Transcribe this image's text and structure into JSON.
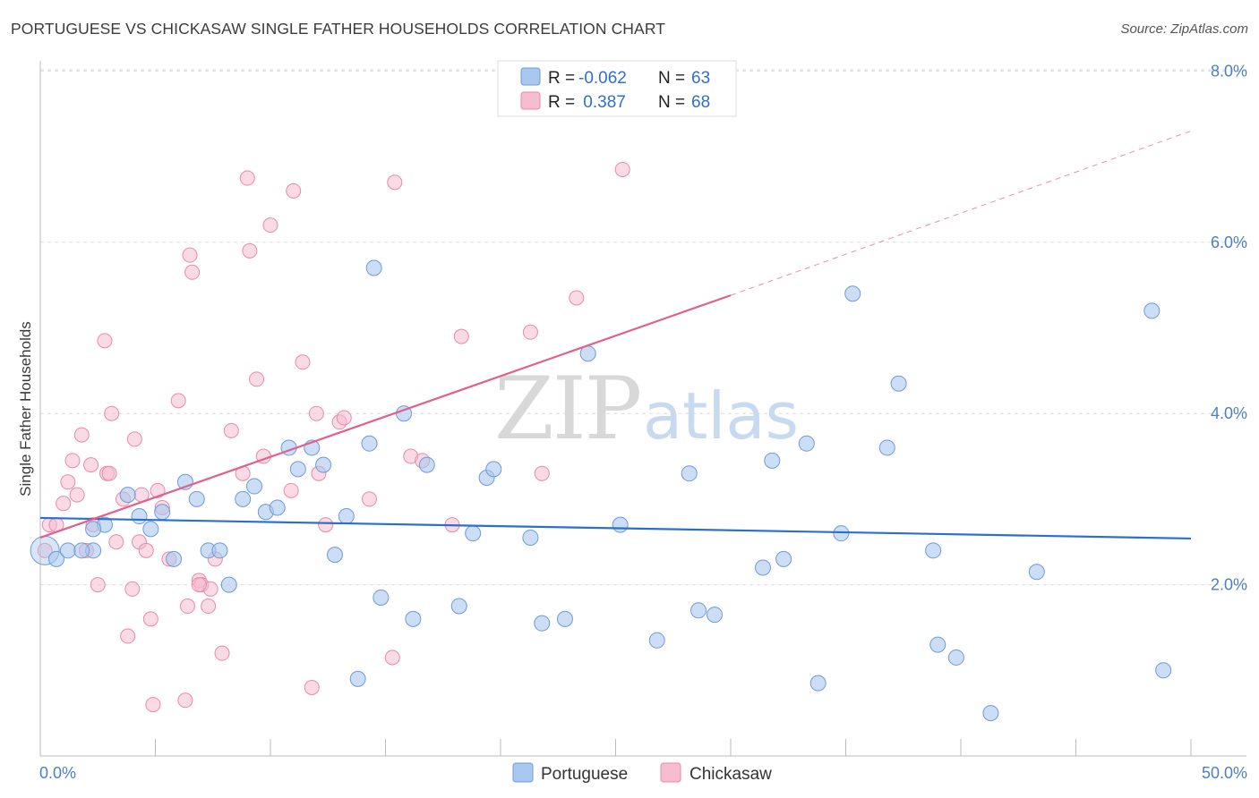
{
  "title": "PORTUGUESE VS CHICKASAW SINGLE FATHER HOUSEHOLDS CORRELATION CHART",
  "source": "Source: ZipAtlas.com",
  "watermark": {
    "zip": "ZIP",
    "atlas": "atlas"
  },
  "legend": {
    "rows": [
      {
        "r_label": "R =",
        "r_value": "-0.062",
        "n_label": "N =",
        "n_value": "63"
      },
      {
        "r_label": "R =",
        "r_value": " 0.387",
        "n_label": "N =",
        "n_value": "68"
      }
    ]
  },
  "bottom_legend": [
    "Portuguese",
    "Chickasaw"
  ],
  "colors": {
    "portuguese_fill": "#a9c8ef",
    "portuguese_stroke": "#6f9ad6",
    "portuguese_line": "#2b6fcc",
    "chickasaw_fill": "#f6bcd0",
    "chickasaw_stroke": "#e88aa8",
    "chickasaw_line": "#e0608e",
    "tick": "#4a7fc8",
    "grid": "#dddddd"
  },
  "chart_data": {
    "type": "scatter",
    "title": "PORTUGUESE VS CHICKASAW SINGLE FATHER HOUSEHOLDS CORRELATION CHART",
    "xlabel": "",
    "ylabel": "Single Father Households",
    "xlim": [
      0,
      50
    ],
    "ylim": [
      0,
      8.5
    ],
    "x_ticks": [
      "0.0%",
      "50.0%"
    ],
    "y_ticks": [
      "2.0%",
      "4.0%",
      "6.0%",
      "8.0%"
    ],
    "y_tick_values": [
      2,
      4,
      6,
      8
    ],
    "grid": true,
    "legend_position": "top-center",
    "series": [
      {
        "name": "Portuguese",
        "r": -0.062,
        "n": 63,
        "trend": {
          "x": [
            0,
            50
          ],
          "y": [
            2.78,
            2.54
          ]
        },
        "points": [
          [
            0.2,
            2.4
          ],
          [
            0.7,
            2.3
          ],
          [
            1.2,
            2.4
          ],
          [
            2.3,
            2.4
          ],
          [
            1.8,
            2.4
          ],
          [
            2.8,
            2.7
          ],
          [
            2.3,
            2.65
          ],
          [
            3.8,
            3.05
          ],
          [
            4.3,
            2.8
          ],
          [
            4.8,
            2.65
          ],
          [
            5.3,
            2.85
          ],
          [
            5.8,
            2.3
          ],
          [
            6.3,
            3.2
          ],
          [
            6.8,
            3.0
          ],
          [
            7.3,
            2.4
          ],
          [
            7.8,
            2.4
          ],
          [
            8.2,
            2.0
          ],
          [
            8.8,
            3.0
          ],
          [
            9.3,
            3.15
          ],
          [
            9.8,
            2.85
          ],
          [
            10.3,
            2.9
          ],
          [
            10.8,
            3.6
          ],
          [
            11.2,
            3.35
          ],
          [
            11.8,
            3.6
          ],
          [
            12.3,
            3.4
          ],
          [
            12.8,
            2.35
          ],
          [
            13.3,
            2.8
          ],
          [
            13.8,
            0.9
          ],
          [
            14.3,
            3.65
          ],
          [
            14.5,
            5.7
          ],
          [
            14.8,
            1.85
          ],
          [
            15.8,
            4.0
          ],
          [
            16.2,
            1.6
          ],
          [
            16.8,
            3.4
          ],
          [
            18.2,
            1.75
          ],
          [
            18.8,
            2.6
          ],
          [
            19.4,
            3.25
          ],
          [
            19.7,
            3.35
          ],
          [
            21.3,
            2.55
          ],
          [
            21.8,
            1.55
          ],
          [
            22.8,
            1.6
          ],
          [
            23.8,
            4.7
          ],
          [
            25.2,
            2.7
          ],
          [
            26.8,
            1.35
          ],
          [
            28.2,
            3.3
          ],
          [
            28.6,
            1.7
          ],
          [
            29.3,
            1.65
          ],
          [
            31.4,
            2.2
          ],
          [
            31.8,
            3.45
          ],
          [
            32.3,
            2.3
          ],
          [
            33.3,
            3.65
          ],
          [
            33.8,
            0.85
          ],
          [
            34.8,
            2.6
          ],
          [
            35.3,
            5.4
          ],
          [
            36.8,
            3.6
          ],
          [
            37.3,
            4.35
          ],
          [
            38.8,
            2.4
          ],
          [
            39.0,
            1.3
          ],
          [
            39.8,
            1.15
          ],
          [
            41.3,
            0.5
          ],
          [
            43.3,
            2.15
          ],
          [
            48.3,
            5.2
          ],
          [
            48.8,
            1.0
          ]
        ]
      },
      {
        "name": "Chickasaw",
        "r": 0.387,
        "n": 68,
        "trend": {
          "x": [
            0,
            30
          ],
          "y": [
            2.55,
            5.38
          ]
        },
        "trend_extension": {
          "x": [
            30,
            50
          ],
          "y": [
            5.38,
            7.3
          ]
        },
        "points": [
          [
            0.2,
            2.4
          ],
          [
            0.4,
            2.7
          ],
          [
            0.7,
            2.7
          ],
          [
            1.0,
            2.95
          ],
          [
            1.2,
            3.2
          ],
          [
            1.4,
            3.45
          ],
          [
            1.6,
            3.05
          ],
          [
            1.8,
            3.75
          ],
          [
            2.0,
            2.4
          ],
          [
            2.2,
            3.4
          ],
          [
            2.3,
            2.7
          ],
          [
            2.5,
            2.0
          ],
          [
            2.8,
            4.85
          ],
          [
            2.9,
            3.3
          ],
          [
            3.1,
            4.0
          ],
          [
            3.3,
            2.5
          ],
          [
            3.6,
            3.0
          ],
          [
            3.8,
            1.4
          ],
          [
            4.0,
            1.95
          ],
          [
            4.1,
            3.7
          ],
          [
            4.3,
            2.5
          ],
          [
            4.4,
            3.05
          ],
          [
            4.6,
            2.4
          ],
          [
            4.8,
            1.6
          ],
          [
            4.9,
            0.6
          ],
          [
            5.1,
            3.1
          ],
          [
            5.3,
            2.9
          ],
          [
            5.6,
            2.3
          ],
          [
            6.0,
            4.15
          ],
          [
            6.3,
            0.65
          ],
          [
            6.4,
            1.75
          ],
          [
            6.5,
            5.85
          ],
          [
            6.6,
            5.65
          ],
          [
            6.9,
            2.05
          ],
          [
            7.0,
            2.0
          ],
          [
            7.3,
            1.75
          ],
          [
            7.4,
            1.95
          ],
          [
            7.6,
            2.3
          ],
          [
            7.9,
            1.2
          ],
          [
            8.3,
            3.8
          ],
          [
            8.8,
            3.3
          ],
          [
            9.0,
            6.75
          ],
          [
            9.1,
            5.9
          ],
          [
            9.4,
            4.4
          ],
          [
            9.7,
            3.5
          ],
          [
            10.0,
            6.2
          ],
          [
            10.9,
            3.1
          ],
          [
            11.0,
            6.6
          ],
          [
            11.4,
            4.6
          ],
          [
            11.8,
            0.8
          ],
          [
            12.0,
            4.0
          ],
          [
            12.1,
            3.3
          ],
          [
            12.4,
            2.7
          ],
          [
            13.0,
            3.9
          ],
          [
            13.2,
            3.95
          ],
          [
            14.3,
            3.0
          ],
          [
            15.3,
            1.15
          ],
          [
            15.4,
            6.7
          ],
          [
            16.1,
            3.5
          ],
          [
            16.6,
            3.45
          ],
          [
            17.9,
            2.7
          ],
          [
            18.3,
            4.9
          ],
          [
            21.3,
            4.95
          ],
          [
            21.8,
            3.3
          ],
          [
            23.3,
            5.35
          ],
          [
            25.3,
            6.85
          ],
          [
            6.9,
            2.0
          ],
          [
            3.0,
            3.3
          ]
        ]
      }
    ]
  }
}
